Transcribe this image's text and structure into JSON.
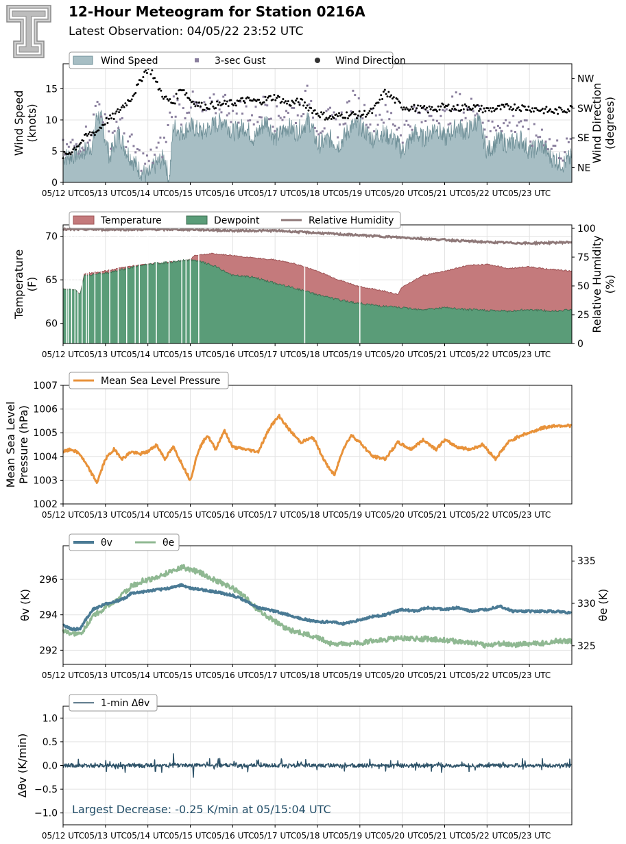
{
  "header": {
    "title": "12-Hour Meteogram for Station 0216A",
    "subtitle": "Latest Observation: 04/05/22 23:52 UTC"
  },
  "colors": {
    "wind_speed_fill": "#a7bec4",
    "wind_speed_line": "#6e8f97",
    "gust": "#8a7f9e",
    "wind_dir": "#000000",
    "temperature": "#c47a7c",
    "dewpoint": "#5a9c78",
    "rh": "#8e7878",
    "mslp": "#e8923a",
    "theta_v": "#4a7a94",
    "theta_e": "#8fb892",
    "dtheta": "#2d5268",
    "annotation": "#25506a"
  },
  "x_axis": {
    "tick_labels": [
      "05/12 UTC",
      "05/13 UTC",
      "05/14 UTC",
      "05/15 UTC",
      "05/16 UTC",
      "05/17 UTC",
      "05/18 UTC",
      "05/19 UTC",
      "05/20 UTC",
      "05/21 UTC",
      "05/22 UTC",
      "05/23 UTC"
    ]
  },
  "chart_data": [
    {
      "type": "area",
      "ylabel": "Wind Speed\n(knots)",
      "y2label": "Wind Direction\n(degrees)",
      "ylim": [
        0,
        19
      ],
      "yticks": [
        0,
        5,
        10,
        15
      ],
      "y2ticks": [
        "NE",
        "SE",
        "SW",
        "NW"
      ],
      "y2tick_degrees": [
        45,
        135,
        225,
        315
      ],
      "y2lim": [
        0,
        360
      ],
      "xlim": [
        0,
        12
      ],
      "legend": [
        "Wind Speed",
        "3-sec Gust",
        "Wind Direction"
      ],
      "series": [
        {
          "name": "Wind Speed",
          "x": [
            0,
            0.3,
            0.5,
            0.7,
            0.8,
            0.9,
            1.1,
            1.3,
            1.5,
            1.7,
            1.8,
            2.0,
            2.2,
            2.4,
            2.5,
            2.6,
            2.8,
            3.0,
            3.3,
            3.5,
            3.8,
            4.0,
            4.3,
            4.5,
            4.8,
            5.0,
            5.3,
            5.5,
            5.8,
            6.0,
            6.3,
            6.5,
            6.8,
            7.0,
            7.3,
            7.5,
            7.8,
            8.0,
            8.3,
            8.5,
            8.8,
            9.0,
            9.3,
            9.5,
            9.8,
            10.0,
            10.3,
            10.5,
            10.8,
            11.0,
            11.3,
            11.5,
            11.8,
            12.0
          ],
          "values": [
            4,
            4.5,
            5,
            6,
            11,
            10,
            4,
            8,
            5,
            3,
            2,
            1,
            3,
            4,
            0,
            9,
            8,
            9,
            8,
            9,
            10,
            8,
            9,
            7,
            10,
            7,
            9,
            8,
            10,
            6,
            7,
            6,
            9,
            9,
            7,
            8,
            7,
            5,
            8,
            7,
            9,
            7,
            9,
            8,
            10,
            5,
            7,
            6,
            7,
            5,
            6,
            4,
            3,
            4
          ]
        },
        {
          "name": "3-sec Gust",
          "x": [
            0,
            0.3,
            0.5,
            0.7,
            0.8,
            0.9,
            1.1,
            1.3,
            1.5,
            1.7,
            1.8,
            2.0,
            2.2,
            2.4,
            2.6,
            2.8,
            3.0,
            3.3,
            3.5,
            3.8,
            4.0,
            4.3,
            4.5,
            4.8,
            5.0,
            5.3,
            5.5,
            5.8,
            6.0,
            6.3,
            6.5,
            6.8,
            7.0,
            7.3,
            7.5,
            7.8,
            8.0,
            8.3,
            8.5,
            8.8,
            9.0,
            9.3,
            9.5,
            9.8,
            10.0,
            10.3,
            10.5,
            10.8,
            11.0,
            11.3,
            11.5,
            11.8,
            12.0
          ],
          "values": [
            5,
            6,
            7,
            9,
            13,
            12,
            7,
            10,
            7,
            5,
            4,
            3,
            5,
            6,
            13,
            11,
            13,
            11,
            12,
            13,
            11,
            12,
            10,
            13,
            10,
            12,
            11,
            14,
            9,
            10,
            9,
            13,
            12,
            10,
            11,
            10,
            8,
            11,
            10,
            12,
            10,
            13,
            11,
            13,
            8,
            10,
            9,
            10,
            7,
            8,
            6,
            5,
            6
          ]
        },
        {
          "name": "Wind Direction",
          "x": [
            0,
            0.2,
            0.4,
            0.6,
            0.8,
            1.0,
            1.2,
            1.4,
            1.6,
            1.8,
            1.9,
            2.0,
            2.1,
            2.2,
            2.4,
            2.6,
            2.8,
            3.0,
            3.3,
            3.6,
            4.0,
            4.3,
            4.6,
            5.0,
            5.3,
            5.6,
            6.0,
            6.3,
            6.6,
            7.0,
            7.3,
            7.6,
            8.0,
            8.3,
            8.6,
            9.0,
            9.3,
            9.6,
            10.0,
            10.3,
            10.6,
            11.0,
            11.3,
            11.6,
            12.0
          ],
          "degrees": [
            80,
            95,
            120,
            145,
            155,
            185,
            200,
            230,
            255,
            300,
            330,
            345,
            335,
            300,
            255,
            240,
            290,
            250,
            230,
            235,
            240,
            250,
            245,
            260,
            240,
            245,
            210,
            195,
            205,
            205,
            215,
            275,
            230,
            225,
            220,
            230,
            225,
            230,
            220,
            225,
            230,
            225,
            220,
            215,
            225
          ]
        }
      ]
    },
    {
      "type": "area",
      "ylabel": "Temperature\n(F)",
      "y2label": "Relative Humidity\n(%)",
      "ylim": [
        57.7,
        71.3
      ],
      "yticks": [
        60,
        65,
        70
      ],
      "y2lim": [
        0,
        103
      ],
      "y2ticks": [
        0,
        25,
        50,
        75,
        100
      ],
      "xlim": [
        0,
        12
      ],
      "legend": [
        "Temperature",
        "Dewpoint",
        "Relative Humidity"
      ],
      "series": [
        {
          "name": "Temperature",
          "x": [
            0,
            0.3,
            0.4,
            0.5,
            1.0,
            1.5,
            2.0,
            2.5,
            3.0,
            3.1,
            3.5,
            4.0,
            4.5,
            5.0,
            5.5,
            6.0,
            6.5,
            7.0,
            7.5,
            7.9,
            8.0,
            8.5,
            9.0,
            9.5,
            10.0,
            10.5,
            11.0,
            11.5,
            12.0
          ],
          "values": [
            64.0,
            63.8,
            63.3,
            65.7,
            66.0,
            66.5,
            66.8,
            67.0,
            67.3,
            67.8,
            68.0,
            67.8,
            67.5,
            67.3,
            66.8,
            66.0,
            65.0,
            64.2,
            63.8,
            63.3,
            64.2,
            65.5,
            66.0,
            66.6,
            66.8,
            66.3,
            66.5,
            66.2,
            66.0
          ]
        },
        {
          "name": "Dewpoint",
          "x": [
            0,
            0.3,
            0.4,
            0.5,
            1.0,
            1.5,
            2.0,
            2.5,
            3.0,
            3.3,
            3.6,
            4.0,
            4.5,
            5.0,
            5.5,
            6.0,
            6.5,
            7.0,
            7.5,
            8.0,
            8.5,
            9.0,
            9.5,
            10.0,
            10.5,
            11.0,
            11.5,
            12.0
          ],
          "values": [
            64.0,
            63.8,
            63.3,
            65.5,
            65.8,
            66.3,
            66.8,
            67.0,
            67.3,
            67.0,
            66.5,
            65.5,
            65.3,
            64.6,
            64.0,
            63.3,
            62.7,
            62.3,
            62.0,
            61.8,
            61.6,
            61.8,
            61.6,
            61.5,
            61.4,
            61.6,
            61.4,
            61.6
          ]
        },
        {
          "name": "Relative Humidity",
          "x": [
            0,
            1,
            2,
            3,
            4,
            5,
            6,
            7,
            8,
            9,
            10,
            11,
            12
          ],
          "values": [
            99,
            99,
            99,
            99,
            98,
            98,
            96,
            94,
            92,
            90,
            88,
            87,
            88
          ]
        }
      ]
    },
    {
      "type": "line",
      "ylabel": "Mean Sea Level\nPressure (hPa)",
      "ylim": [
        1002,
        1007
      ],
      "yticks": [
        1002,
        1003,
        1004,
        1005,
        1006,
        1007
      ],
      "xlim": [
        0,
        12
      ],
      "legend": [
        "Mean Sea Level Pressure"
      ],
      "series": [
        {
          "name": "Mean Sea Level Pressure",
          "x": [
            0,
            0.2,
            0.4,
            0.6,
            0.8,
            1.0,
            1.2,
            1.4,
            1.6,
            1.8,
            2.0,
            2.2,
            2.4,
            2.6,
            2.8,
            3.0,
            3.2,
            3.4,
            3.6,
            3.8,
            4.0,
            4.3,
            4.6,
            4.9,
            5.1,
            5.3,
            5.6,
            5.9,
            6.2,
            6.4,
            6.6,
            6.8,
            7.0,
            7.3,
            7.6,
            7.9,
            8.2,
            8.5,
            8.8,
            9.0,
            9.3,
            9.6,
            9.9,
            10.2,
            10.5,
            10.8,
            11.0,
            11.3,
            11.6,
            11.9,
            12.0
          ],
          "values": [
            1004.2,
            1004.3,
            1004.1,
            1003.5,
            1002.9,
            1003.9,
            1004.3,
            1003.9,
            1004.2,
            1004.1,
            1004.2,
            1004.5,
            1003.9,
            1004.4,
            1003.7,
            1003.0,
            1004.3,
            1004.9,
            1004.3,
            1005.1,
            1004.4,
            1004.3,
            1004.2,
            1005.3,
            1005.7,
            1005.2,
            1004.6,
            1004.8,
            1003.7,
            1003.2,
            1004.3,
            1004.9,
            1004.6,
            1004.0,
            1003.9,
            1004.6,
            1004.3,
            1004.7,
            1004.3,
            1004.7,
            1004.4,
            1004.3,
            1004.5,
            1003.9,
            1004.6,
            1004.9,
            1005.0,
            1005.2,
            1005.3,
            1005.3,
            1005.3
          ]
        }
      ]
    },
    {
      "type": "line",
      "ylabel": "θv (K)",
      "y2label": "θe (K)",
      "ylim": [
        291.2,
        297.9
      ],
      "yticks": [
        292,
        294,
        296
      ],
      "y2lim": [
        322.8,
        336.8
      ],
      "y2ticks": [
        325,
        330,
        335
      ],
      "xlim": [
        0,
        12
      ],
      "legend": [
        "θv",
        "θe"
      ],
      "series": [
        {
          "name": "θv",
          "x": [
            0,
            0.2,
            0.4,
            0.5,
            0.7,
            1.0,
            1.3,
            1.5,
            1.6,
            1.9,
            2.2,
            2.5,
            2.8,
            3.0,
            3.3,
            3.6,
            4.0,
            4.3,
            4.6,
            5.0,
            5.3,
            5.6,
            6.0,
            6.3,
            6.6,
            7.0,
            7.3,
            7.6,
            8.0,
            8.3,
            8.6,
            9.0,
            9.3,
            9.6,
            10.0,
            10.3,
            10.6,
            11.0,
            11.3,
            11.6,
            12.0
          ],
          "values": [
            293.4,
            293.2,
            293.2,
            293.6,
            294.3,
            294.6,
            294.8,
            295.0,
            295.2,
            295.3,
            295.4,
            295.5,
            295.7,
            295.5,
            295.4,
            295.3,
            295.1,
            294.8,
            294.4,
            294.2,
            294.0,
            293.8,
            293.6,
            293.6,
            293.5,
            293.7,
            293.9,
            294.0,
            294.3,
            294.2,
            294.4,
            294.3,
            294.4,
            294.2,
            294.3,
            294.5,
            294.2,
            294.2,
            294.2,
            294.2,
            294.1
          ]
        },
        {
          "name": "θe",
          "x": [
            0,
            0.2,
            0.4,
            0.5,
            0.7,
            1.0,
            1.3,
            1.6,
            1.9,
            2.2,
            2.5,
            2.8,
            3.0,
            3.3,
            3.6,
            4.0,
            4.3,
            4.6,
            5.0,
            5.3,
            5.6,
            6.0,
            6.3,
            6.6,
            7.0,
            7.3,
            7.6,
            8.0,
            8.3,
            8.6,
            9.0,
            9.3,
            9.6,
            10.0,
            10.3,
            10.6,
            11.0,
            11.3,
            11.6,
            12.0
          ],
          "values": [
            326.7,
            326.4,
            326.3,
            327.0,
            328.5,
            329.5,
            330.5,
            332.0,
            332.7,
            333.0,
            333.7,
            334.3,
            334.0,
            333.5,
            332.7,
            331.8,
            330.7,
            329.2,
            327.9,
            326.9,
            326.5,
            326.0,
            325.3,
            325.2,
            325.3,
            325.6,
            325.7,
            325.9,
            325.8,
            325.8,
            325.7,
            325.5,
            325.4,
            325.0,
            325.3,
            325.1,
            325.2,
            325.3,
            325.6,
            325.5
          ]
        }
      ]
    },
    {
      "type": "line",
      "ylabel": "Δθv (K/min)",
      "ylim": [
        -1.25,
        1.25
      ],
      "yticks": [
        -1.0,
        -0.5,
        0.0,
        0.5,
        1.0
      ],
      "ytick_labels": [
        "−1.0",
        "−0.5",
        "0.0",
        "0.5",
        "1.0"
      ],
      "xlim": [
        0,
        12
      ],
      "legend": [
        "1-min Δθv"
      ],
      "annotation": "Largest Decrease: -0.25 K/min at 05/15:04 UTC",
      "series": [
        {
          "name": "1-min Δθv",
          "x_start": 0,
          "x_end": 12,
          "mean": 0.0,
          "min": -0.25,
          "max": 0.25,
          "min_x": 3.07
        }
      ]
    }
  ]
}
